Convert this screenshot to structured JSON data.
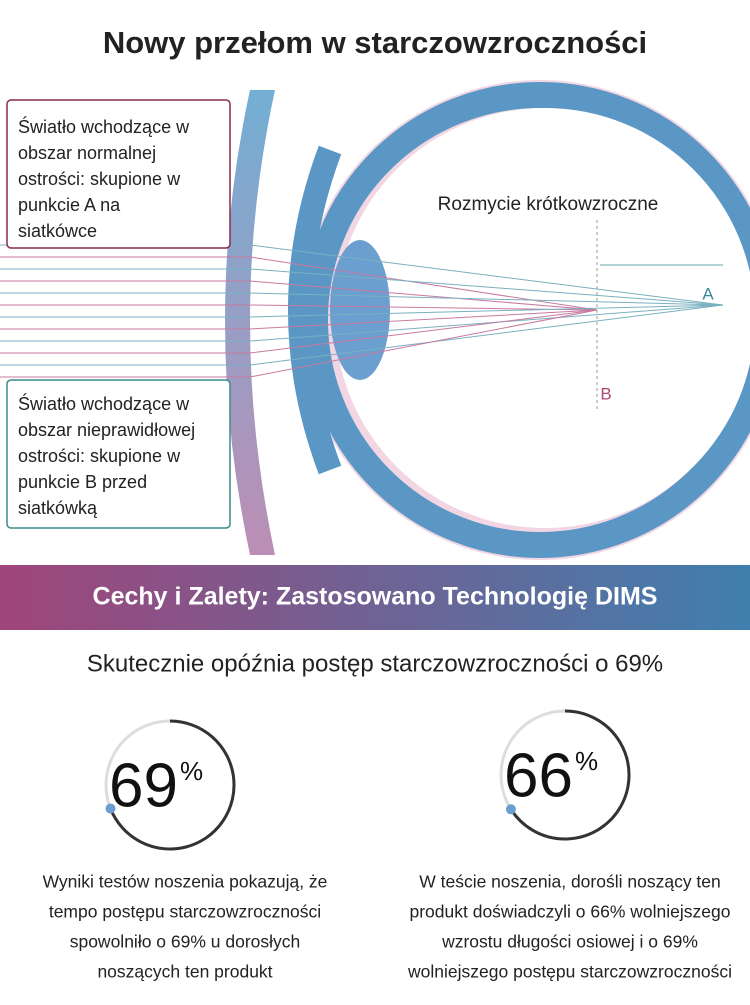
{
  "title": "Nowy przełom w starczowzroczności",
  "diagram": {
    "box_a": [
      "Światło wchodzące w",
      "obszar normalnej",
      "ostrości: skupione w",
      "punkcie A na",
      "siatkówce"
    ],
    "box_b": [
      "Światło wchodzące w",
      "obszar nieprawidłowej",
      "ostrości: skupione w",
      "punkcie B przed",
      "siatkówką"
    ],
    "blur_label": "Rozmycie krótkowzroczne",
    "point_a": "A",
    "point_b": "B"
  },
  "banner": "Cechy i Zalety: Zastosowano Technologię DIMS",
  "subtitle": "Skutecznie opóźnia postęp starczowzroczności o 69%",
  "stats": [
    {
      "value": 69,
      "unit": "%",
      "text": [
        "Wyniki testów noszenia pokazują, że",
        "tempo postępu starczowzroczności",
        "spowolniło o 69% u dorosłych",
        "noszących ten produkt"
      ]
    },
    {
      "value": 66,
      "unit": "%",
      "text": [
        "W teście noszenia, dorośli noszący ten",
        "produkt doświadczyli o 66% wolniejszego",
        "wzrostu długości osiowej i o 69%",
        "wolniejszego postępu starczowzroczności"
      ]
    }
  ]
}
